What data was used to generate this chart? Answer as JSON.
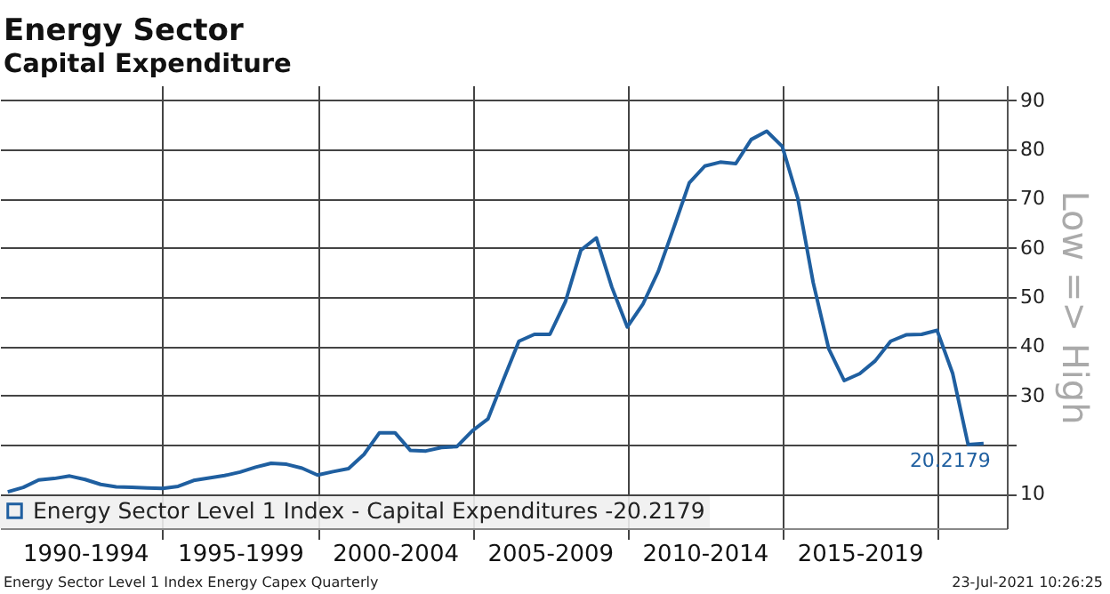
{
  "chart_data": {
    "type": "line",
    "title": "Energy Sector",
    "subtitle": "Capital Expenditure",
    "ylabel": "Low => High",
    "categories": [
      null,
      null,
      null,
      null,
      null,
      "1990-1994",
      null,
      null,
      null,
      null,
      null,
      null,
      null,
      null,
      null,
      "1995-1999",
      null,
      null,
      null,
      null,
      null,
      null,
      null,
      null,
      null,
      "2000-2004",
      null,
      null,
      null,
      null,
      null,
      null,
      null,
      null,
      null,
      "2005-2009",
      null,
      null,
      null,
      null,
      null,
      null,
      null,
      null,
      null,
      "2010-2014",
      null,
      null,
      null,
      null,
      null,
      null,
      null,
      null,
      null,
      "2015-2019",
      null,
      null,
      null,
      null,
      null,
      null,
      null,
      null,
      null
    ],
    "series": [
      {
        "name": "Energy Sector Level 1 Index - Capital Expenditures -20.2179",
        "color": "#1f5fa0",
        "values": [
          10.4,
          11.3,
          12.8,
          13.1,
          13.6,
          12.9,
          11.9,
          11.4,
          11.3,
          11.2,
          11.1,
          11.5,
          12.7,
          13.2,
          13.7,
          14.4,
          15.4,
          16.2,
          16.0,
          15.2,
          13.8,
          14.5,
          15.1,
          18.0,
          22.4,
          22.4,
          18.8,
          18.7,
          19.4,
          19.6,
          22.8,
          25.2,
          33.2,
          41.0,
          42.4,
          42.4,
          49.0,
          59.5,
          62.0,
          52.0,
          43.9,
          48.5,
          55.2,
          64.1,
          73.2,
          76.6,
          77.4,
          77.1,
          82.0,
          83.7,
          80.6,
          70.1,
          52.9,
          39.5,
          33.0,
          34.4,
          37.0,
          41.0,
          42.3,
          42.4,
          43.2,
          34.5,
          20.0,
          20.2179,
          null
        ],
        "value_labels": [
          null,
          null,
          null,
          null,
          null,
          null,
          null,
          null,
          null,
          null,
          null,
          null,
          null,
          null,
          null,
          null,
          null,
          null,
          null,
          null,
          null,
          null,
          null,
          null,
          null,
          null,
          null,
          null,
          null,
          null,
          null,
          null,
          null,
          null,
          null,
          null,
          null,
          null,
          null,
          null,
          null,
          null,
          null,
          null,
          null,
          null,
          null,
          null,
          null,
          null,
          null,
          null,
          null,
          null,
          null,
          null,
          null,
          null,
          null,
          null,
          null,
          null,
          null,
          "20.2179",
          null
        ]
      }
    ],
    "ylim": [
      3,
      93
    ],
    "yticks": [
      10,
      {
        "value": 20,
        "label": null
      },
      30,
      40,
      50,
      60,
      70,
      80,
      90
    ],
    "grid": true,
    "legend": "bottom left",
    "line_style": "solid",
    "annotations": [
      "Energy Sector Level 1 Index Energy Capex Quarterly",
      "23-Jul-2021 10:26:25"
    ]
  }
}
